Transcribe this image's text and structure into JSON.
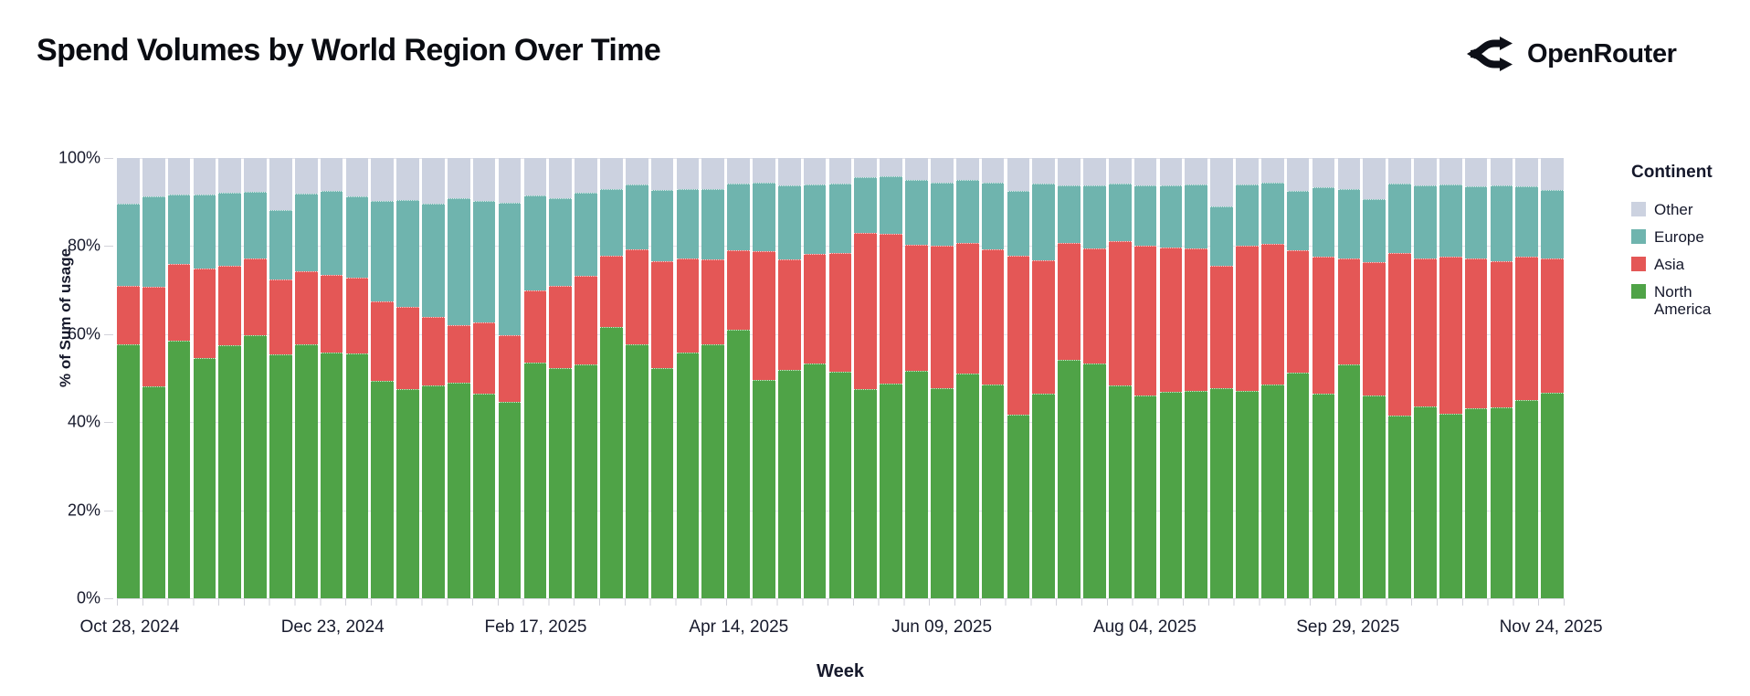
{
  "page": {
    "title": "Spend Volumes by World Region Over Time",
    "brand": {
      "name": "OpenRouter",
      "icon": "openrouter-fork-logo"
    }
  },
  "legend": {
    "title": "Continent"
  },
  "axes": {
    "y_title": "% of Sum of usage",
    "x_title": "Week",
    "y_tick_labels": [
      "0%",
      "20%",
      "40%",
      "60%",
      "80%",
      "100%"
    ]
  },
  "chart_data": {
    "type": "bar",
    "subtype": "stacked-100-percent-vertical",
    "title": "Spend Volumes by World Region Over Time",
    "xlabel": "Week",
    "ylabel": "% of Sum of usage",
    "ylim": [
      0,
      100
    ],
    "grid": true,
    "legend_position": "right",
    "legend_title": "Continent",
    "legend_order_top_to_bottom": [
      "Other",
      "Europe",
      "Asia",
      "North America"
    ],
    "x_tick_indices": [
      0,
      8,
      16,
      24,
      32,
      40,
      48,
      56
    ],
    "x_tick_labels": [
      "Oct 28, 2024",
      "Dec 23, 2024",
      "Feb 17, 2025",
      "Apr 14, 2025",
      "Jun 09, 2025",
      "Aug 04, 2025",
      "Sep 29, 2025",
      "Nov 24, 2025"
    ],
    "categories": [
      "Oct 28, 2024",
      "Nov 04, 2024",
      "Nov 11, 2024",
      "Nov 18, 2024",
      "Nov 25, 2024",
      "Dec 02, 2024",
      "Dec 09, 2024",
      "Dec 16, 2024",
      "Dec 23, 2024",
      "Dec 30, 2024",
      "Jan 06, 2025",
      "Jan 13, 2025",
      "Jan 20, 2025",
      "Jan 27, 2025",
      "Feb 03, 2025",
      "Feb 10, 2025",
      "Feb 17, 2025",
      "Feb 24, 2025",
      "Mar 03, 2025",
      "Mar 10, 2025",
      "Mar 17, 2025",
      "Mar 24, 2025",
      "Mar 31, 2025",
      "Apr 07, 2025",
      "Apr 14, 2025",
      "Apr 21, 2025",
      "Apr 28, 2025",
      "May 05, 2025",
      "May 12, 2025",
      "May 19, 2025",
      "May 26, 2025",
      "Jun 02, 2025",
      "Jun 09, 2025",
      "Jun 16, 2025",
      "Jun 23, 2025",
      "Jun 30, 2025",
      "Jul 07, 2025",
      "Jul 14, 2025",
      "Jul 21, 2025",
      "Jul 28, 2025",
      "Aug 04, 2025",
      "Aug 11, 2025",
      "Aug 18, 2025",
      "Aug 25, 2025",
      "Sep 01, 2025",
      "Sep 08, 2025",
      "Sep 15, 2025",
      "Sep 22, 2025",
      "Sep 29, 2025",
      "Oct 06, 2025",
      "Oct 13, 2025",
      "Oct 20, 2025",
      "Oct 27, 2025",
      "Nov 03, 2025",
      "Nov 10, 2025",
      "Nov 17, 2025",
      "Nov 24, 2025"
    ],
    "series": [
      {
        "name": "North America",
        "color": "#4fa347",
        "values": [
          57.7,
          48.2,
          58.6,
          54.5,
          57.4,
          59.7,
          55.3,
          57.7,
          55.8,
          55.5,
          49.4,
          47.5,
          48.4,
          48.9,
          46.5,
          44.6,
          53.5,
          52.2,
          53.2,
          61.7,
          57.7,
          52.2,
          55.9,
          57.6,
          61.0,
          49.6,
          51.9,
          53.4,
          51.5,
          47.5,
          48.8,
          51.7,
          47.7,
          51.0,
          48.5,
          41.8,
          46.5,
          54.1,
          53.4,
          48.4,
          46.0,
          46.8,
          47.0,
          47.7,
          47.0,
          48.5,
          51.2,
          46.5,
          53.1,
          46.1,
          41.5,
          43.6,
          41.8,
          43.2,
          43.4,
          45.1,
          46.7
        ]
      },
      {
        "name": "Asia",
        "color": "#e45756",
        "values": [
          13.2,
          22.5,
          17.3,
          20.4,
          18.1,
          17.4,
          17.2,
          16.6,
          17.7,
          17.3,
          18.0,
          18.7,
          15.4,
          13.1,
          16.1,
          15.2,
          16.5,
          18.8,
          20.0,
          16.1,
          21.6,
          24.4,
          21.2,
          19.3,
          18.0,
          29.2,
          25.1,
          24.9,
          27.0,
          35.5,
          34.0,
          28.5,
          32.3,
          29.7,
          30.8,
          36.0,
          30.3,
          26.6,
          26.1,
          32.7,
          34.0,
          32.9,
          32.4,
          27.9,
          33.0,
          32.1,
          27.8,
          31.0,
          24.1,
          30.3,
          37.0,
          33.5,
          35.7,
          34.0,
          33.2,
          32.4,
          30.5
        ]
      },
      {
        "name": "Europe",
        "color": "#6fb4ae",
        "values": [
          18.8,
          20.5,
          15.9,
          16.9,
          16.6,
          15.2,
          15.7,
          17.6,
          19.0,
          18.5,
          22.8,
          24.2,
          25.9,
          28.8,
          27.6,
          30.1,
          21.4,
          19.8,
          18.9,
          15.2,
          14.7,
          16.2,
          15.8,
          16.1,
          15.2,
          15.7,
          16.7,
          15.7,
          15.7,
          12.6,
          13.0,
          14.8,
          14.5,
          14.4,
          15.2,
          14.7,
          17.4,
          13.0,
          14.2,
          13.1,
          13.7,
          14.0,
          14.6,
          13.5,
          14.0,
          13.8,
          13.5,
          15.9,
          15.7,
          14.2,
          15.7,
          16.6,
          16.5,
          16.3,
          17.2,
          16.0,
          15.6
        ]
      },
      {
        "name": "Other",
        "color": "#ccd2e0",
        "values": [
          10.3,
          8.8,
          8.2,
          8.2,
          7.9,
          7.7,
          11.8,
          8.1,
          7.5,
          8.7,
          9.8,
          9.6,
          10.3,
          9.2,
          9.8,
          10.1,
          8.6,
          9.2,
          7.9,
          7.0,
          6.0,
          7.2,
          7.1,
          7.0,
          5.8,
          5.5,
          6.3,
          6.0,
          5.8,
          4.4,
          4.2,
          5.0,
          5.5,
          4.9,
          5.5,
          7.5,
          5.8,
          6.3,
          6.3,
          5.8,
          6.3,
          6.3,
          6.0,
          10.9,
          6.0,
          5.6,
          7.5,
          6.6,
          7.1,
          9.4,
          5.8,
          6.3,
          6.0,
          6.5,
          6.2,
          6.5,
          7.2
        ]
      }
    ]
  }
}
